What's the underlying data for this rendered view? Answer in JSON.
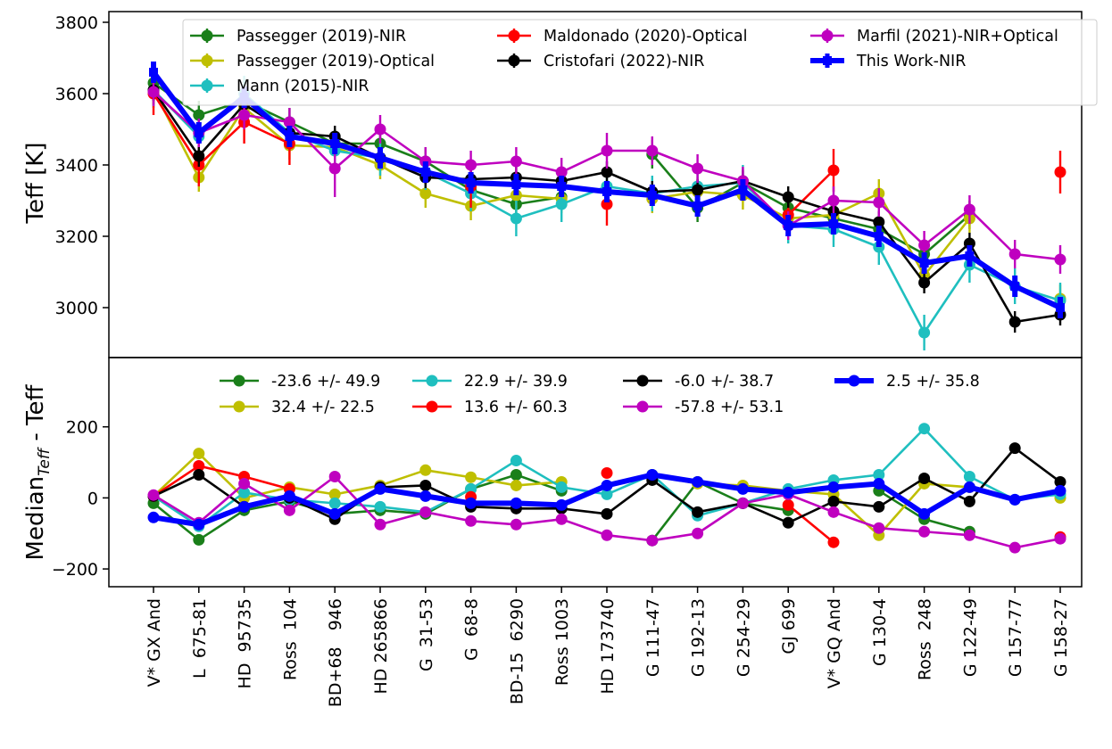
{
  "stars": [
    "V* GX And",
    "L  675-81",
    "HD  95735",
    "Ross  104",
    "BD+68   946",
    "HD 265866",
    "G  31-53",
    "G  68-8",
    "BD-15  6290",
    "Ross 1003",
    "HD 173740",
    "G 111-47",
    "G 192-13",
    "G 254-29",
    "GJ 699",
    "V* GQ And",
    "G 130-4",
    "Ross  248",
    "G 122-49",
    "G 157-77",
    "G 158-27"
  ],
  "chart_data": [
    {
      "type": "line",
      "panel": "top",
      "title": "",
      "ylabel": "Teff [K]",
      "ylim": [
        2860,
        3830
      ],
      "yticks": [
        3000,
        3200,
        3400,
        3600,
        3800
      ],
      "legend_position": "top",
      "series": [
        {
          "key": "pas_nir",
          "name": "Passegger (2019)-NIR",
          "color": "#1a7f1a",
          "values": [
            3630,
            3540,
            3580,
            3520,
            3460,
            3460,
            3410,
            3330,
            3290,
            3310,
            null,
            3430,
            3280,
            3350,
            3280,
            3250,
            3220,
            3150,
            3260,
            null,
            null
          ],
          "errors": [
            40,
            40,
            40,
            40,
            40,
            40,
            40,
            40,
            40,
            40,
            null,
            40,
            40,
            40,
            40,
            40,
            40,
            40,
            40,
            null,
            null
          ]
        },
        {
          "key": "pas_opt",
          "name": "Passegger (2019)-Optical",
          "color": "#bfbf00",
          "values": [
            3610,
            3365,
            3560,
            3455,
            3450,
            3400,
            3320,
            3285,
            3315,
            3305,
            null,
            3305,
            3325,
            3315,
            3250,
            3260,
            3320,
            3090,
            3250,
            null,
            3025
          ],
          "errors": [
            40,
            40,
            40,
            40,
            40,
            40,
            40,
            40,
            40,
            40,
            null,
            40,
            40,
            40,
            40,
            40,
            40,
            40,
            40,
            null,
            40
          ]
        },
        {
          "key": "mann",
          "name": "Mann (2015)-NIR",
          "color": "#1fbfbf",
          "values": [
            3610,
            3480,
            3600,
            3490,
            3440,
            3420,
            3380,
            3320,
            3250,
            3290,
            3340,
            3320,
            3340,
            3350,
            3230,
            3220,
            3170,
            2930,
            3120,
            3060,
            3020
          ],
          "errors": [
            50,
            50,
            50,
            50,
            50,
            50,
            50,
            50,
            50,
            50,
            50,
            50,
            50,
            50,
            50,
            50,
            50,
            50,
            50,
            50,
            50
          ]
        },
        {
          "key": "mald",
          "name": "Maldonado (2020)-Optical",
          "color": "#ff0000",
          "values": [
            3600,
            3400,
            3520,
            3460,
            null,
            null,
            null,
            3340,
            null,
            null,
            3290,
            null,
            null,
            null,
            3260,
            3385,
            null,
            null,
            null,
            null,
            3380
          ],
          "errors": [
            60,
            60,
            60,
            60,
            null,
            null,
            null,
            60,
            null,
            null,
            60,
            null,
            null,
            null,
            60,
            60,
            null,
            null,
            null,
            null,
            60
          ]
        },
        {
          "key": "cris",
          "name": "Cristofari (2022)-NIR",
          "color": "#000000",
          "values": [
            3610,
            3425,
            3570,
            3490,
            3480,
            3420,
            3365,
            3360,
            3365,
            3355,
            3380,
            3325,
            3330,
            3355,
            3310,
            3270,
            3240,
            3070,
            3180,
            2960,
            2980
          ],
          "errors": [
            30,
            30,
            30,
            30,
            30,
            30,
            30,
            30,
            30,
            30,
            30,
            30,
            30,
            30,
            30,
            30,
            30,
            30,
            30,
            30,
            30
          ]
        },
        {
          "key": "marf",
          "name": "Marfil (2021)-NIR+Optical",
          "color": "#bf00bf",
          "values": [
            3605,
            3490,
            3540,
            3520,
            3390,
            3500,
            3410,
            3400,
            3410,
            3380,
            3440,
            3440,
            3390,
            3355,
            3230,
            3300,
            3295,
            3175,
            3275,
            3150,
            3135
          ],
          "errors": [
            40,
            40,
            40,
            40,
            80,
            40,
            40,
            40,
            40,
            40,
            50,
            40,
            40,
            40,
            40,
            40,
            40,
            40,
            40,
            40,
            40
          ]
        },
        {
          "key": "tw",
          "name": "This Work-NIR",
          "color": "#0000ff",
          "values": [
            3660,
            3490,
            3590,
            3480,
            3460,
            3420,
            3380,
            3350,
            3345,
            3340,
            3325,
            3315,
            3285,
            3330,
            3230,
            3235,
            3200,
            3125,
            3145,
            3060,
            3000
          ],
          "errors": [
            30,
            30,
            30,
            30,
            30,
            30,
            30,
            30,
            30,
            30,
            30,
            30,
            30,
            30,
            30,
            30,
            30,
            30,
            30,
            30,
            30
          ]
        }
      ]
    },
    {
      "type": "line",
      "panel": "bottom",
      "ylabel_main": "Median",
      "ylabel_sub": "Teff",
      "ylabel_tail": " - Teff",
      "ylim": [
        -250,
        395
      ],
      "yticks": [
        -200,
        0,
        200
      ],
      "yticklabels": [
        "−200",
        "0",
        "200"
      ],
      "series": [
        {
          "key": "pas_nir",
          "name": "-23.6 +/- 49.9",
          "color": "#1a7f1a",
          "values": [
            -15,
            -118,
            -35,
            -10,
            -45,
            -35,
            -45,
            25,
            65,
            20,
            null,
            -120,
            45,
            -15,
            -35,
            null,
            20,
            -60,
            -95,
            null,
            null
          ]
        },
        {
          "key": "pas_opt",
          "name": "32.4 +/- 22.5",
          "color": "#bfbf00",
          "values": [
            5,
            125,
            0,
            30,
            10,
            35,
            78,
            58,
            35,
            45,
            null,
            65,
            40,
            35,
            20,
            10,
            -105,
            40,
            30,
            null,
            0
          ]
        },
        {
          "key": "mann",
          "name": "22.9 +/- 39.9",
          "color": "#1fbfbf",
          "values": [
            5,
            -80,
            15,
            -5,
            -15,
            -25,
            -40,
            25,
            105,
            30,
            10,
            65,
            -50,
            -15,
            25,
            50,
            65,
            195,
            60,
            -5,
            10
          ]
        },
        {
          "key": "mald",
          "name": "13.6 +/- 60.3",
          "color": "#ff0000",
          "values": [
            5,
            90,
            60,
            25,
            null,
            null,
            null,
            3,
            null,
            null,
            70,
            null,
            null,
            null,
            -20,
            -125,
            null,
            null,
            null,
            null,
            -110
          ]
        },
        {
          "key": "cris",
          "name": "-6.0 +/- 38.7",
          "color": "#000000",
          "values": [
            5,
            65,
            -25,
            0,
            -60,
            30,
            35,
            -25,
            -30,
            -30,
            -45,
            50,
            -40,
            -15,
            -70,
            -10,
            -25,
            55,
            -10,
            140,
            45
          ]
        },
        {
          "key": "marf",
          "name": "-57.8 +/- 53.1",
          "color": "#bf00bf",
          "values": [
            8,
            -70,
            40,
            -35,
            60,
            -75,
            -40,
            -65,
            -75,
            -60,
            -105,
            -120,
            -100,
            -15,
            10,
            -40,
            -85,
            -95,
            -105,
            -140,
            -115
          ]
        },
        {
          "key": "tw",
          "name": "2.5 +/- 35.8",
          "color": "#0000ff",
          "values": [
            -55,
            -75,
            -25,
            5,
            -45,
            25,
            5,
            -15,
            -15,
            -20,
            35,
            65,
            45,
            25,
            15,
            30,
            40,
            -45,
            30,
            -5,
            20
          ]
        }
      ]
    }
  ]
}
